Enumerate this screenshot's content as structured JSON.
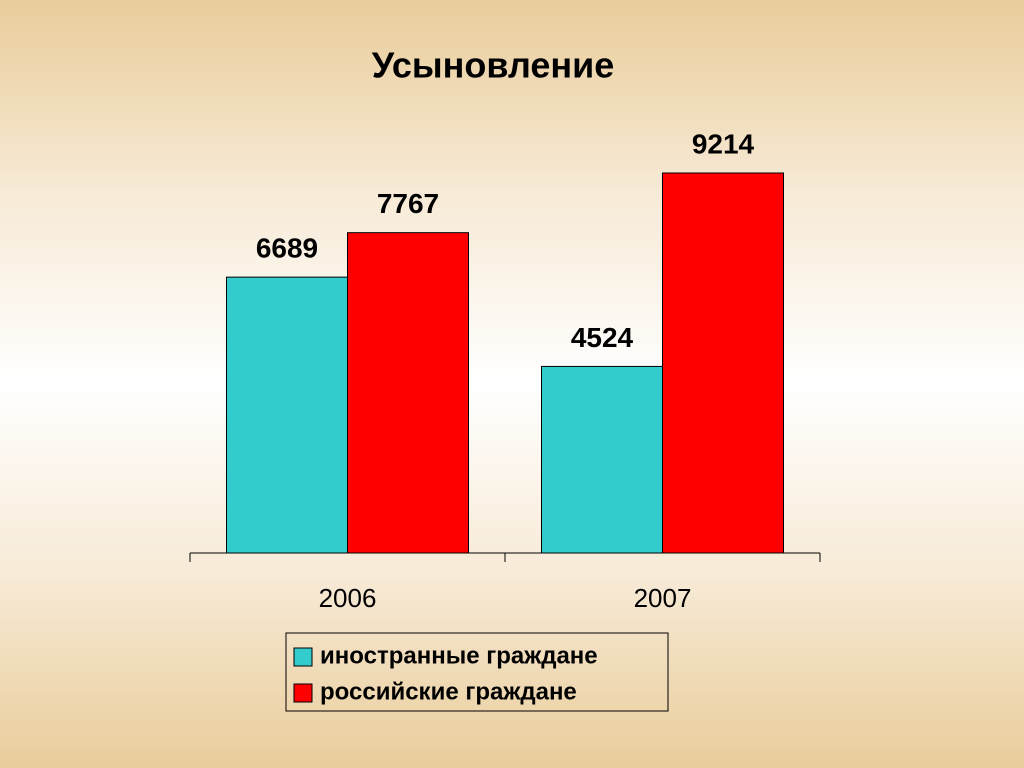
{
  "chart_data": {
    "type": "bar",
    "title": "Усыновление",
    "categories": [
      "2006",
      "2007"
    ],
    "series": [
      {
        "name": "иностранные граждане",
        "color": "#33cccc",
        "values": [
          6689,
          4524
        ]
      },
      {
        "name": "российские граждане",
        "color": "#ff0000",
        "values": [
          7767,
          9214
        ]
      }
    ],
    "legend": "bottom"
  }
}
